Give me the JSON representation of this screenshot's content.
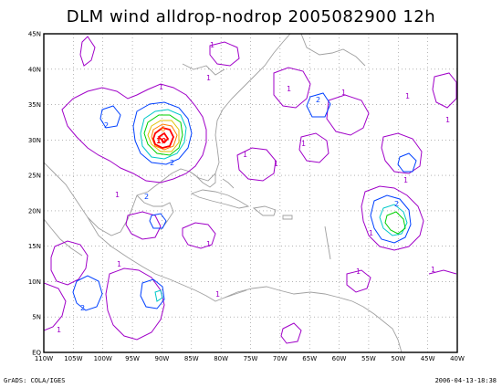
{
  "title": "DLM wind alldrop-nodrop 2005082900 12h",
  "footer": {
    "left": "GrADS: COLA/IGES",
    "right": "2006-04-13-18:38"
  },
  "lat_labels": [
    "45N",
    "40N",
    "35N",
    "30N",
    "25N",
    "20N",
    "15N",
    "10N",
    "5N",
    "EQ"
  ],
  "lon_labels": [
    "110W",
    "105W",
    "100W",
    "95W",
    "90W",
    "85W",
    "80W",
    "75W",
    "70W",
    "65W",
    "60W",
    "55W",
    "50W",
    "45W",
    "40W"
  ],
  "contour_labels": [
    "1",
    "2",
    "6",
    "10",
    "2",
    "2",
    "1",
    "1",
    "1",
    "2",
    "1",
    "1",
    "1",
    "1",
    "1",
    "2",
    "1",
    "1",
    "1",
    "1",
    "2",
    "1",
    "1",
    "1",
    "1",
    "1",
    "1"
  ],
  "colors": {
    "c1": "#a000c8",
    "c2": "#0040ff",
    "c3": "#00c8c8",
    "c4": "#00d000",
    "c5": "#e0c000",
    "c6": "#ff8000",
    "c7": "#ff0000",
    "coast": "#a0a0a0"
  }
}
